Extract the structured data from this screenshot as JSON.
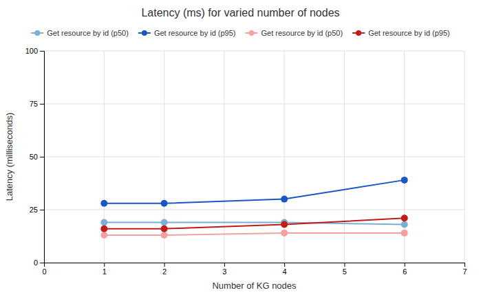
{
  "chart_data": {
    "type": "line",
    "title": "Latency (ms) for varied number of nodes",
    "xlabel": "Number of KG nodes",
    "ylabel": "Latency (milliseconds)",
    "x": [
      1,
      2,
      4,
      6
    ],
    "series": [
      {
        "name": "Get resource by id (p50)",
        "color": "#7bafd4",
        "marker": "circle",
        "values": [
          19,
          19,
          19,
          18
        ]
      },
      {
        "name": "Get resource by id (p95)",
        "color": "#1a56c4",
        "marker": "circle",
        "values": [
          28,
          28,
          30,
          39
        ]
      },
      {
        "name": "Get resource by id (p50)",
        "color": "#f4a0a0",
        "marker": "circle",
        "values": [
          13,
          13,
          14,
          14
        ]
      },
      {
        "name": "Get resource by id (p95)",
        "color": "#c41a1a",
        "marker": "circle",
        "values": [
          16,
          16,
          18,
          21
        ]
      }
    ],
    "xlim": [
      0,
      7
    ],
    "xticks": [
      0,
      1,
      2,
      3,
      4,
      5,
      6,
      7
    ],
    "ylim": [
      0,
      100
    ],
    "yticks": [
      0,
      25,
      50,
      75,
      100
    ],
    "grid": true,
    "legend": "top"
  }
}
